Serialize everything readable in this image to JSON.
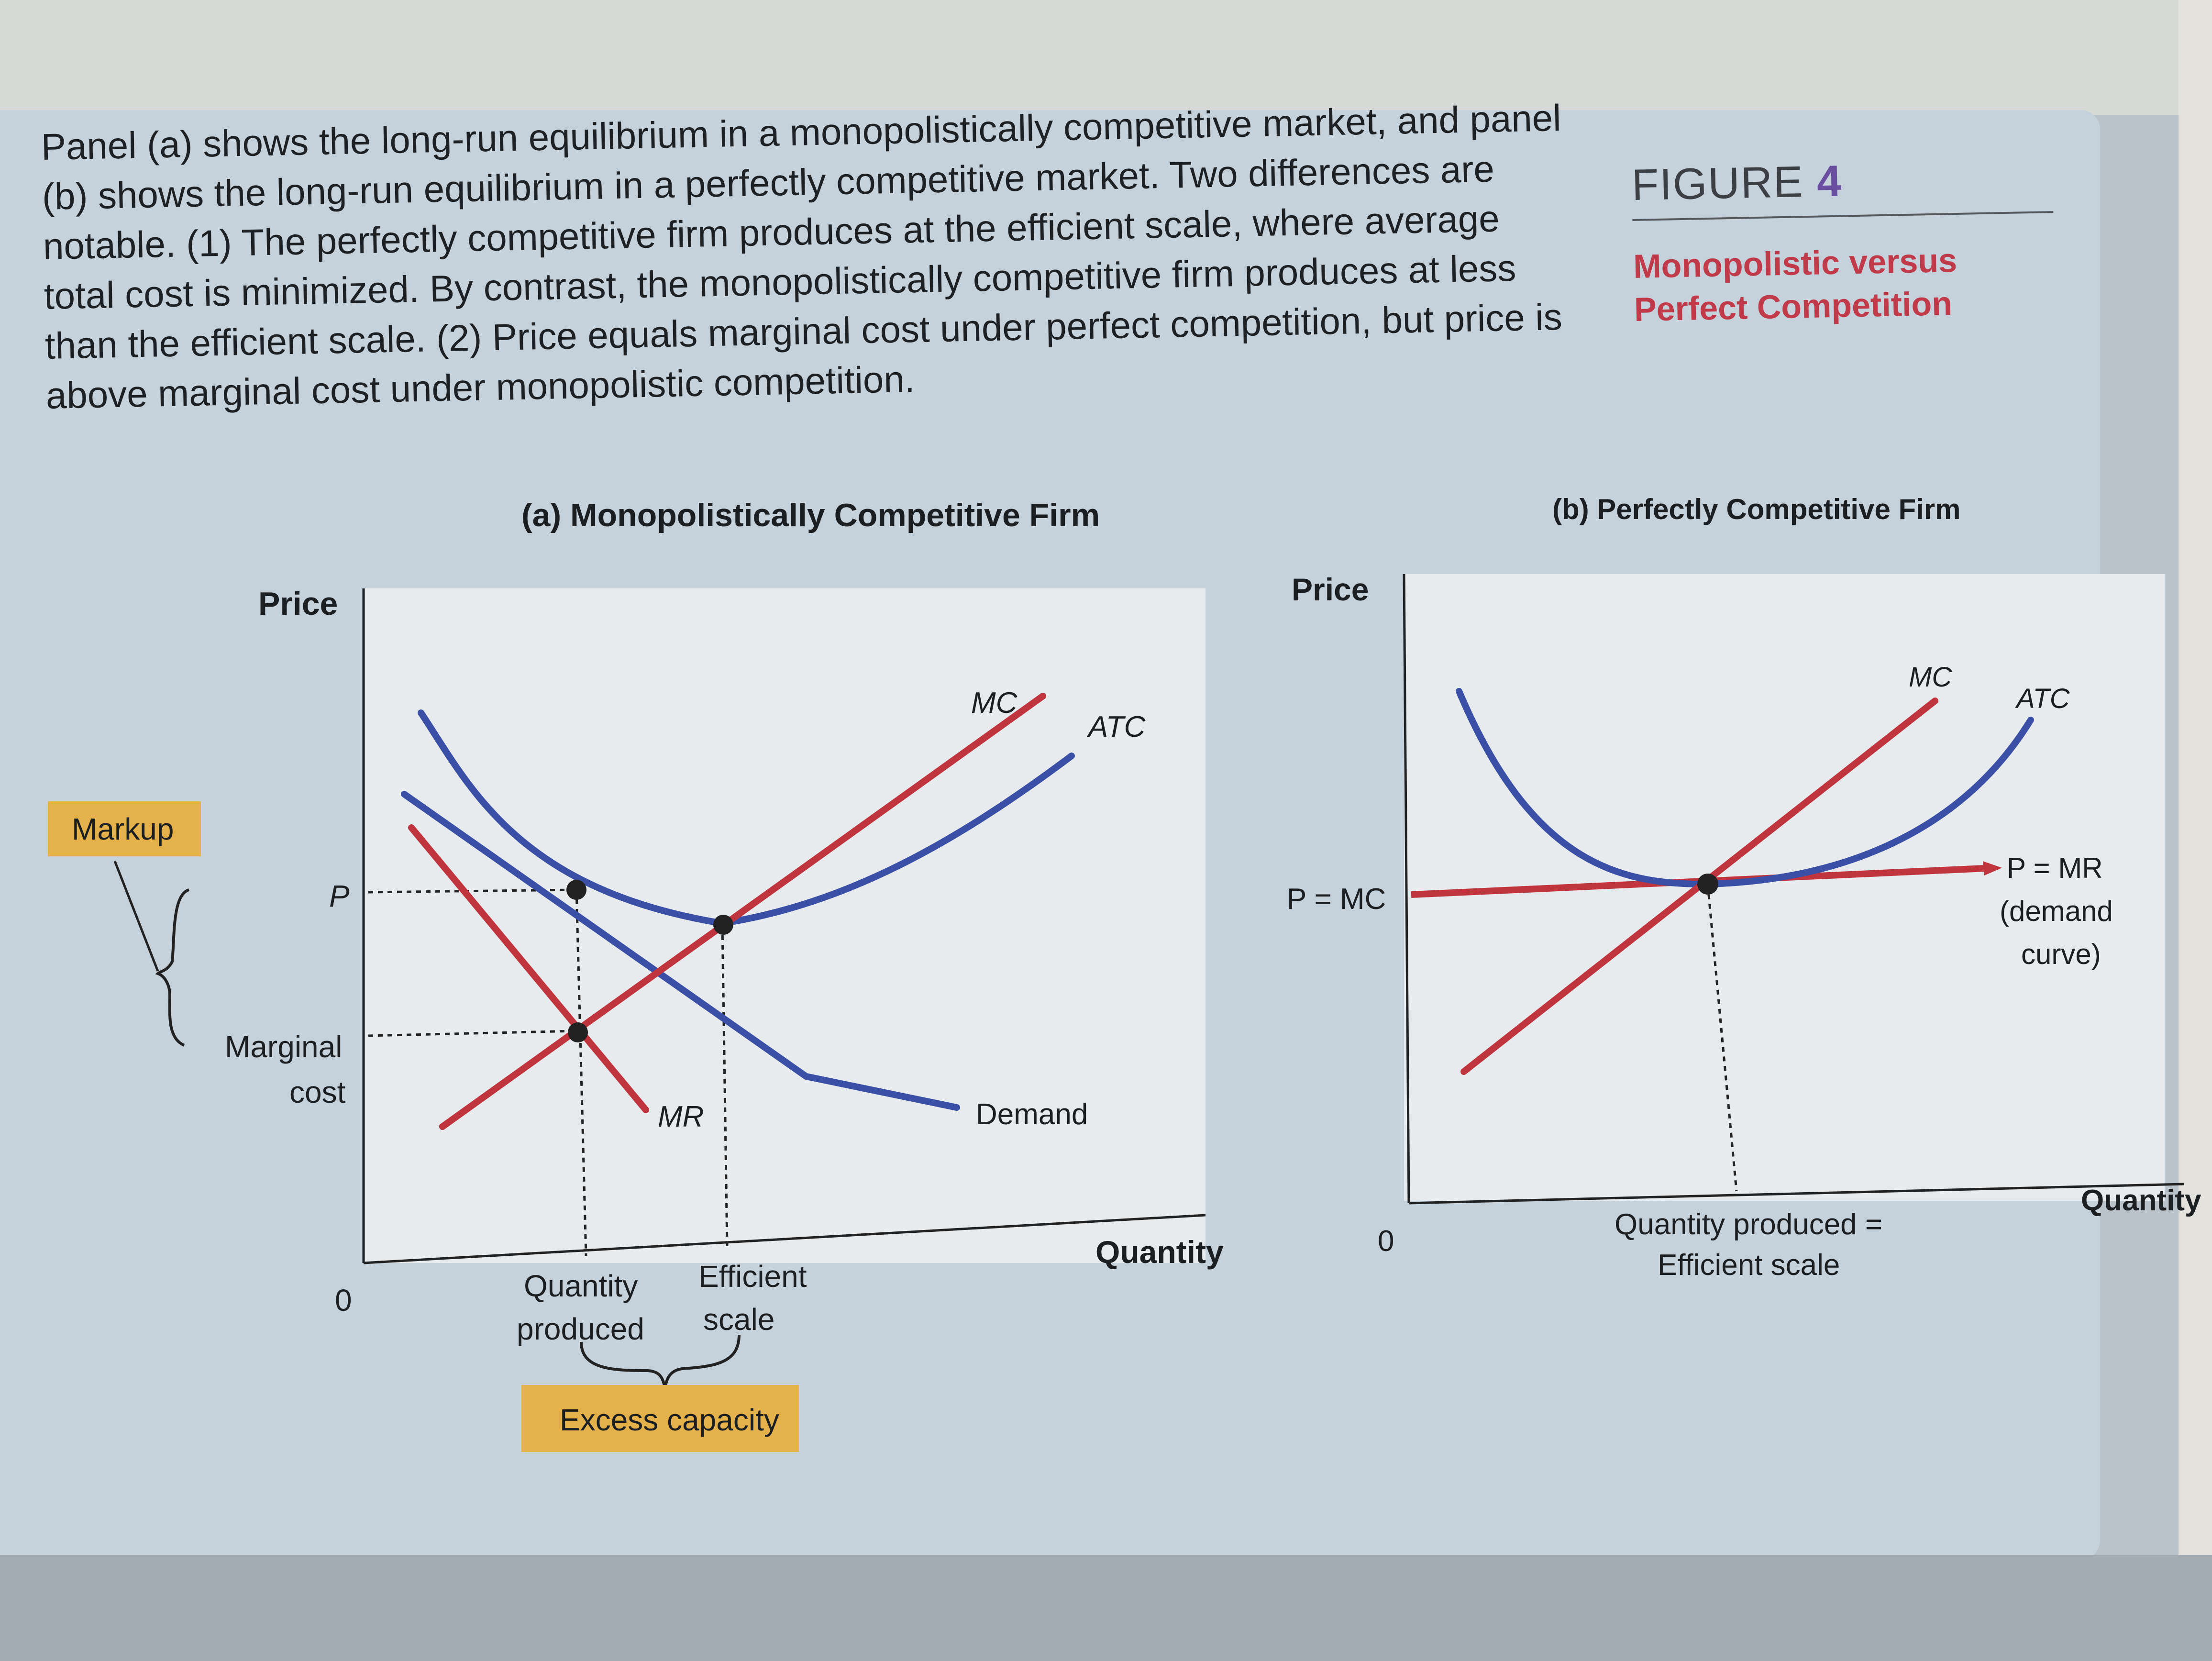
{
  "caption": "Panel (a) shows the long-run equilibrium in a monopolistically competitive market, and panel (b) shows the long-run equilibrium in a perfectly competitive market. Two differences are notable. (1) The perfectly competitive firm produces at the efficient scale, where average total cost is minimized. By contrast, the monopolistically competitive firm produces at less than the efficient scale. (2) Price equals marginal cost under perfect competition, but price is above marginal cost under monopolistic competition.",
  "figure": {
    "label": "FIGURE",
    "number": "4",
    "subtitle": "Monopolistic versus Perfect Competition"
  },
  "panel_a": {
    "title": "(a) Monopolistically Competitive Firm",
    "y_axis": "Price",
    "x_axis": "Quantity",
    "origin": "0",
    "curves": {
      "mc": "MC",
      "atc": "ATC",
      "mr": "MR",
      "demand": "Demand"
    },
    "price_tick": "P",
    "mc_tick_line1": "Marginal",
    "mc_tick_line2": "cost",
    "markup_label": "Markup",
    "q_produced_line1": "Quantity",
    "q_produced_line2": "produced",
    "efficient_line1": "Efficient",
    "efficient_line2": "scale",
    "excess_label": "Excess capacity"
  },
  "panel_b": {
    "title": "(b) Perfectly Competitive Firm",
    "y_axis": "Price",
    "x_axis": "Quantity",
    "origin": "0",
    "curves": {
      "mc": "MC",
      "atc": "ATC"
    },
    "price_tick": "P = MC",
    "line_label_1": "P = MR",
    "line_label_2": "(demand",
    "line_label_3": "curve)",
    "q_label_line1": "Quantity produced =",
    "q_label_line2": "Efficient scale"
  },
  "colors": {
    "red_curve": "#c0343d",
    "blue_curve": "#3a4fa6",
    "highlight": "#e4b14a",
    "accent_purple": "#6a4fa0",
    "accent_red": "#c03a4a"
  }
}
